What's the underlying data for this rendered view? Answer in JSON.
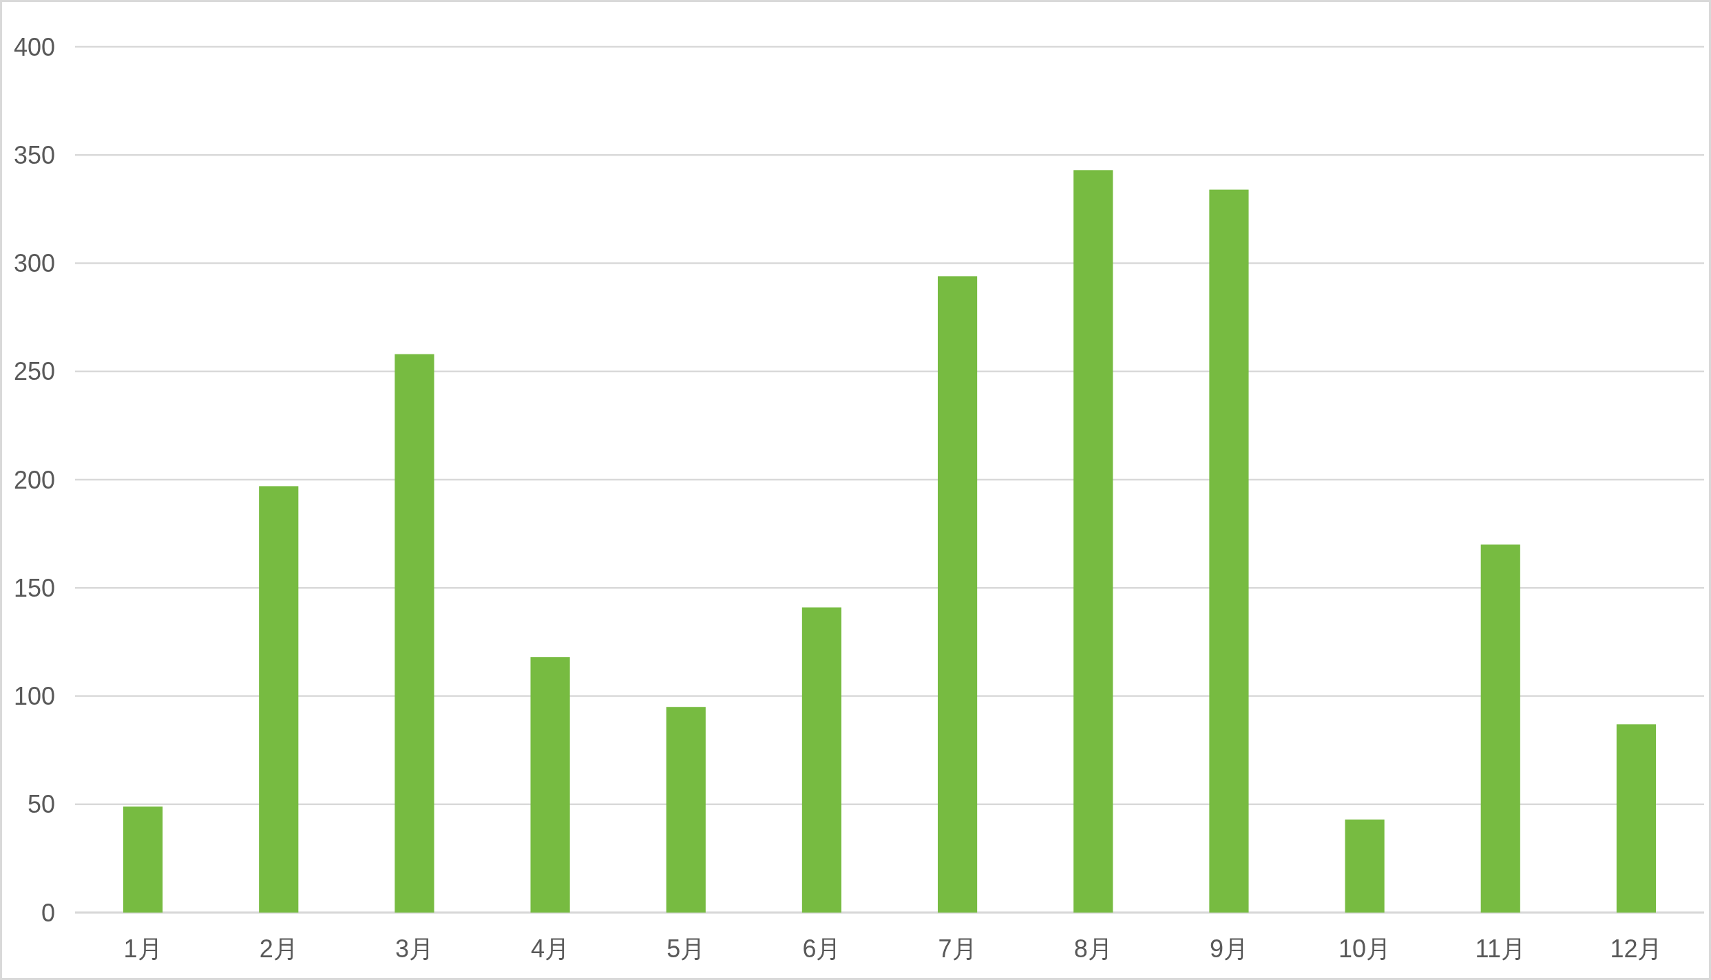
{
  "chart_data": {
    "type": "bar",
    "categories": [
      "1月",
      "2月",
      "3月",
      "4月",
      "5月",
      "6月",
      "7月",
      "8月",
      "9月",
      "10月",
      "11月",
      "12月"
    ],
    "values": [
      49,
      197,
      258,
      118,
      95,
      141,
      294,
      343,
      334,
      43,
      170,
      87
    ],
    "color": "#77bb41",
    "ylim": [
      0,
      400
    ],
    "yticks": [
      0,
      50,
      100,
      150,
      200,
      250,
      300,
      350,
      400
    ],
    "grid": "y"
  }
}
